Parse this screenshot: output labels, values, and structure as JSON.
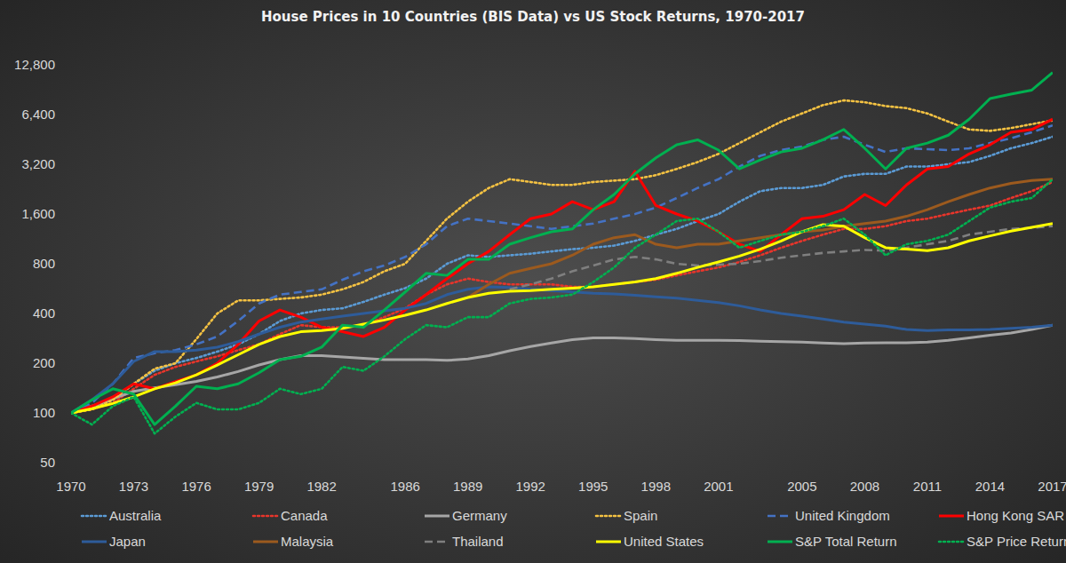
{
  "chart_data": {
    "type": "line",
    "title": "House Prices in 10 Countries (BIS Data) vs US Stock Returns, 1970-2017",
    "log": "y",
    "grid": false,
    "legend": "bottom",
    "xlim": [
      1970,
      2017
    ],
    "xticks": [
      1970,
      1973,
      1976,
      1979,
      1982,
      1986,
      1989,
      1992,
      1995,
      1998,
      2001,
      2005,
      2008,
      2011,
      2014,
      2017
    ],
    "ylim": [
      50,
      12800
    ],
    "yticks": [
      50,
      100,
      200,
      400,
      800,
      {
        "value": 1600,
        "label": "1,600"
      },
      {
        "value": 3200,
        "label": "3,200"
      },
      {
        "value": 6400,
        "label": "6,400"
      },
      {
        "value": 12800,
        "label": "12,800"
      }
    ],
    "x": [
      1970,
      1971,
      1972,
      1973,
      1974,
      1975,
      1976,
      1977,
      1978,
      1979,
      1980,
      1981,
      1982,
      1983,
      1984,
      1985,
      1986,
      1987,
      1988,
      1989,
      1990,
      1991,
      1992,
      1993,
      1994,
      1995,
      1996,
      1997,
      1998,
      1999,
      2000,
      2001,
      2002,
      2003,
      2004,
      2005,
      2006,
      2007,
      2008,
      2009,
      2010,
      2011,
      2012,
      2013,
      2014,
      2015,
      2016,
      2017
    ],
    "series": [
      {
        "name": "Australia",
        "color": "#5b9bd5",
        "line_style": "dotted",
        "values": [
          100,
          108,
          120,
          150,
          180,
          200,
          215,
          235,
          260,
          300,
          360,
          400,
          420,
          430,
          470,
          520,
          570,
          650,
          800,
          900,
          880,
          900,
          920,
          950,
          980,
          1000,
          1030,
          1100,
          1200,
          1300,
          1450,
          1600,
          1900,
          2200,
          2300,
          2300,
          2400,
          2700,
          2800,
          2800,
          3100,
          3100,
          3200,
          3300,
          3600,
          4000,
          4300,
          4700
        ]
      },
      {
        "name": "Canada",
        "color": "#e8352b",
        "line_style": "dotted",
        "values": [
          100,
          105,
          115,
          140,
          170,
          190,
          205,
          220,
          240,
          260,
          300,
          340,
          330,
          330,
          340,
          380,
          430,
          520,
          600,
          650,
          620,
          600,
          600,
          600,
          580,
          580,
          600,
          620,
          640,
          680,
          720,
          760,
          820,
          900,
          1000,
          1100,
          1200,
          1300,
          1300,
          1350,
          1450,
          1500,
          1600,
          1700,
          1800,
          2000,
          2200,
          2500
        ]
      },
      {
        "name": "Germany",
        "color": "#a6a6a6",
        "line_style": "solid",
        "values": [
          100,
          110,
          122,
          135,
          142,
          148,
          155,
          165,
          178,
          195,
          210,
          222,
          222,
          218,
          214,
          210,
          210,
          210,
          208,
          212,
          222,
          238,
          252,
          265,
          278,
          285,
          285,
          282,
          278,
          275,
          275,
          275,
          274,
          272,
          270,
          268,
          265,
          263,
          265,
          266,
          266,
          268,
          275,
          285,
          295,
          305,
          320,
          340
        ]
      },
      {
        "name": "Spain",
        "color": "#f5c242",
        "line_style": "dotted",
        "values": [
          100,
          105,
          120,
          150,
          185,
          200,
          280,
          400,
          480,
          480,
          490,
          500,
          520,
          560,
          620,
          720,
          800,
          1100,
          1500,
          1900,
          2300,
          2600,
          2500,
          2400,
          2400,
          2500,
          2550,
          2600,
          2750,
          3000,
          3300,
          3700,
          4300,
          5000,
          5800,
          6500,
          7300,
          7800,
          7600,
          7200,
          7000,
          6500,
          5800,
          5200,
          5100,
          5300,
          5600,
          5900
        ]
      },
      {
        "name": "United Kingdom",
        "color": "#4472c4",
        "line_style": "dashed",
        "values": [
          100,
          115,
          150,
          215,
          230,
          240,
          260,
          290,
          360,
          460,
          520,
          540,
          560,
          640,
          720,
          780,
          880,
          1050,
          1350,
          1500,
          1450,
          1400,
          1350,
          1300,
          1350,
          1400,
          1500,
          1600,
          1750,
          2000,
          2300,
          2600,
          3100,
          3600,
          3900,
          4100,
          4500,
          4700,
          4200,
          3800,
          4000,
          3950,
          3900,
          4000,
          4300,
          4600,
          5000,
          5500
        ]
      },
      {
        "name": "Hong Kong SAR",
        "color": "#ff0000",
        "line_style": "solid",
        "values": [
          100,
          110,
          125,
          150,
          140,
          155,
          170,
          200,
          260,
          360,
          420,
          380,
          330,
          310,
          290,
          330,
          420,
          520,
          650,
          800,
          950,
          1200,
          1500,
          1600,
          1900,
          1700,
          1900,
          2900,
          1800,
          1600,
          1450,
          1250,
          1050,
          950,
          1200,
          1500,
          1550,
          1700,
          2100,
          1800,
          2400,
          3000,
          3100,
          3700,
          4200,
          5000,
          5200,
          6000
        ]
      },
      {
        "name": "Japan",
        "color": "#2e5c9a",
        "line_style": "solid",
        "values": [
          100,
          120,
          150,
          205,
          235,
          235,
          240,
          250,
          270,
          300,
          330,
          355,
          370,
          385,
          400,
          415,
          430,
          460,
          520,
          560,
          580,
          575,
          560,
          550,
          540,
          530,
          525,
          515,
          505,
          495,
          480,
          465,
          445,
          420,
          400,
          385,
          370,
          355,
          345,
          335,
          320,
          315,
          318,
          318,
          320,
          325,
          330,
          340
        ]
      },
      {
        "name": "Malaysia",
        "color": "#9c5a1e",
        "line_style": "solid",
        "values": [
          null,
          null,
          null,
          null,
          null,
          null,
          null,
          null,
          null,
          null,
          null,
          null,
          null,
          null,
          null,
          null,
          null,
          null,
          null,
          500,
          600,
          700,
          750,
          800,
          900,
          1050,
          1150,
          1200,
          1050,
          1000,
          1050,
          1050,
          1100,
          1150,
          1200,
          1250,
          1280,
          1350,
          1400,
          1450,
          1550,
          1700,
          1900,
          2100,
          2300,
          2450,
          2550,
          2600
        ]
      },
      {
        "name": "Thailand",
        "color": "#7f7f7f",
        "line_style": "dashed",
        "values": [
          null,
          null,
          null,
          null,
          null,
          null,
          null,
          null,
          null,
          null,
          null,
          null,
          null,
          null,
          null,
          null,
          null,
          null,
          null,
          null,
          null,
          560,
          600,
          650,
          720,
          780,
          850,
          880,
          850,
          800,
          780,
          790,
          800,
          830,
          870,
          900,
          930,
          950,
          970,
          960,
          1000,
          1050,
          1100,
          1200,
          1250,
          1300,
          1320,
          1350
        ]
      },
      {
        "name": "United States",
        "color": "#ffff00",
        "line_style": "solid",
        "values": [
          100,
          106,
          114,
          125,
          140,
          152,
          170,
          195,
          225,
          260,
          290,
          310,
          315,
          325,
          345,
          365,
          390,
          420,
          460,
          500,
          530,
          545,
          550,
          560,
          570,
          580,
          600,
          620,
          650,
          700,
          760,
          820,
          890,
          980,
          1100,
          1250,
          1380,
          1350,
          1150,
          1000,
          980,
          960,
          1000,
          1100,
          1180,
          1260,
          1330,
          1400
        ]
      },
      {
        "name": "S&P Total Return",
        "color": "#00b050",
        "line_style": "solid",
        "values": [
          100,
          120,
          140,
          130,
          85,
          110,
          145,
          140,
          150,
          175,
          210,
          220,
          250,
          340,
          330,
          420,
          540,
          700,
          680,
          850,
          850,
          1050,
          1150,
          1250,
          1300,
          1700,
          2100,
          2800,
          3500,
          4200,
          4500,
          3900,
          3000,
          3400,
          3800,
          4000,
          4500,
          5200,
          4000,
          3000,
          4000,
          4300,
          4800,
          6000,
          8000,
          8500,
          9000,
          11500
        ]
      },
      {
        "name": "S&P Price Return",
        "color": "#00b050",
        "line_style": "dotted",
        "values": [
          100,
          85,
          110,
          125,
          75,
          95,
          115,
          105,
          105,
          115,
          140,
          130,
          140,
          190,
          180,
          220,
          280,
          340,
          330,
          380,
          380,
          460,
          490,
          500,
          520,
          620,
          760,
          1000,
          1200,
          1450,
          1500,
          1250,
          1000,
          1100,
          1200,
          1250,
          1350,
          1500,
          1200,
          900,
          1050,
          1100,
          1200,
          1450,
          1750,
          1900,
          2000,
          2600
        ]
      }
    ]
  }
}
